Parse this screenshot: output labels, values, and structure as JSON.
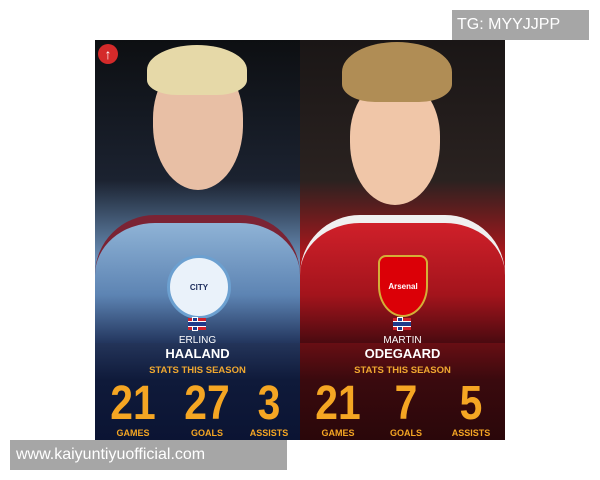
{
  "watermark_top": "TG: MYYJJPP",
  "watermark_bottom": "www.kaiyuntiyuofficial.com",
  "up_icon": "arrow-up-icon",
  "players": [
    {
      "first_name": "ERLING",
      "last_name": "HAALAND",
      "club": "CITY",
      "club_badge": "manchester-city-badge",
      "nationality": "Norway",
      "stats_title": "STATS THIS SEASON",
      "stats": [
        {
          "value": "21",
          "label": "GAMES"
        },
        {
          "value": "27",
          "label": "GOALS"
        },
        {
          "value": "3",
          "label": "ASSISTS"
        }
      ]
    },
    {
      "first_name": "MARTIN",
      "last_name": "ODEGAARD",
      "club": "Arsenal",
      "club_badge": "arsenal-badge",
      "nationality": "Norway",
      "stats_title": "STATS THIS SEASON",
      "stats": [
        {
          "value": "21",
          "label": "GAMES"
        },
        {
          "value": "7",
          "label": "GOALS"
        },
        {
          "value": "5",
          "label": "ASSISTS"
        }
      ]
    }
  ]
}
